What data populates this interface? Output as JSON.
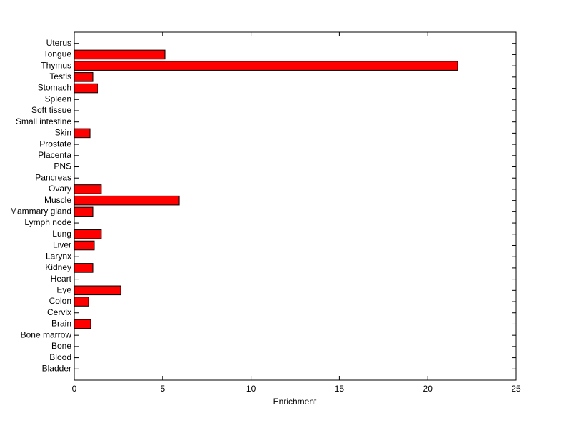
{
  "chart_data": {
    "type": "barh",
    "categories": [
      "Bladder",
      "Blood",
      "Bone",
      "Bone marrow",
      "Brain",
      "Cervix",
      "Colon",
      "Eye",
      "Heart",
      "Kidney",
      "Larynx",
      "Liver",
      "Lung",
      "Lymph node",
      "Mammary gland",
      "Muscle",
      "Ovary",
      "Pancreas",
      "PNS",
      "Placenta",
      "Prostate",
      "Skin",
      "Small intestine",
      "Soft tissue",
      "Spleen",
      "Stomach",
      "Testis",
      "Thymus",
      "Tongue",
      "Uterus"
    ],
    "values": [
      0,
      0,
      0,
      0,
      0.93,
      0,
      0.81,
      2.63,
      0,
      1.05,
      0,
      1.13,
      1.53,
      0,
      1.05,
      5.94,
      1.53,
      0,
      0,
      0,
      0,
      0.89,
      0,
      0,
      0,
      1.33,
      1.05,
      21.69,
      5.13,
      0
    ],
    "color": "#ff0000",
    "xlabel": "Enrichment",
    "xlim": [
      0,
      25
    ],
    "xticks": [
      0,
      5,
      10,
      15,
      20,
      25
    ]
  }
}
